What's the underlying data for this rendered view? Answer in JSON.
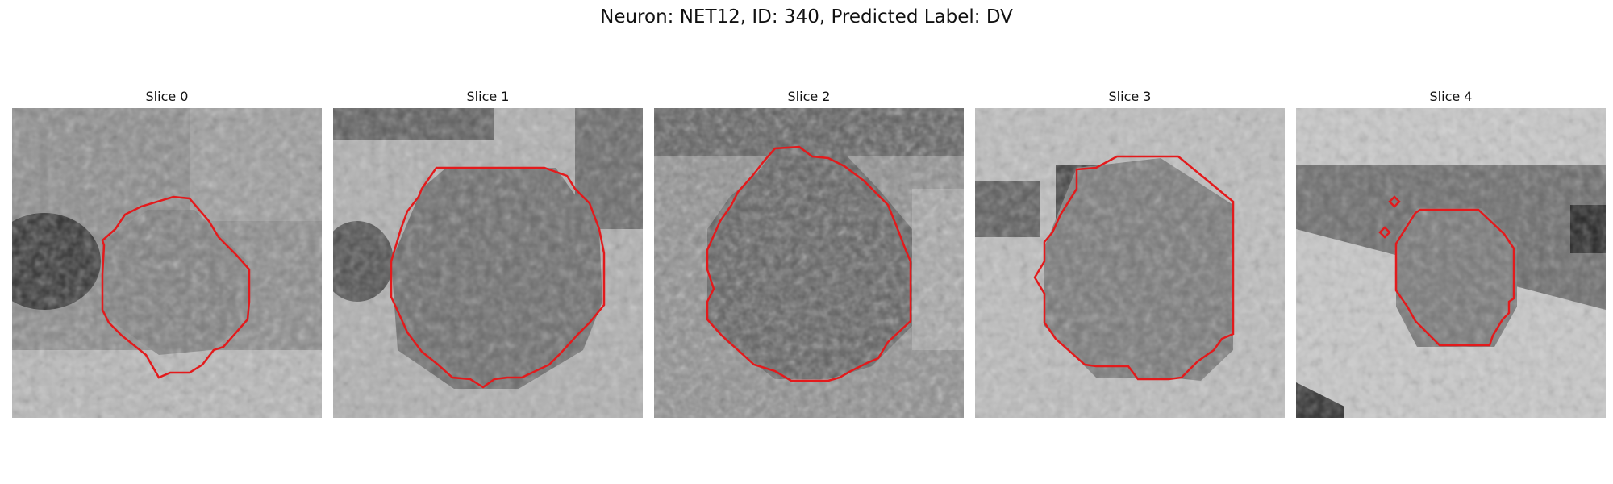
{
  "figure": {
    "title": "Neuron: NET12, ID: 340, Predicted Label: DV"
  },
  "slices": [
    {
      "label": "Slice 0"
    },
    {
      "label": "Slice 1"
    },
    {
      "label": "Slice 2"
    },
    {
      "label": "Slice 3"
    },
    {
      "label": "Slice 4"
    }
  ],
  "colors": {
    "contour": "#e31a1c"
  }
}
